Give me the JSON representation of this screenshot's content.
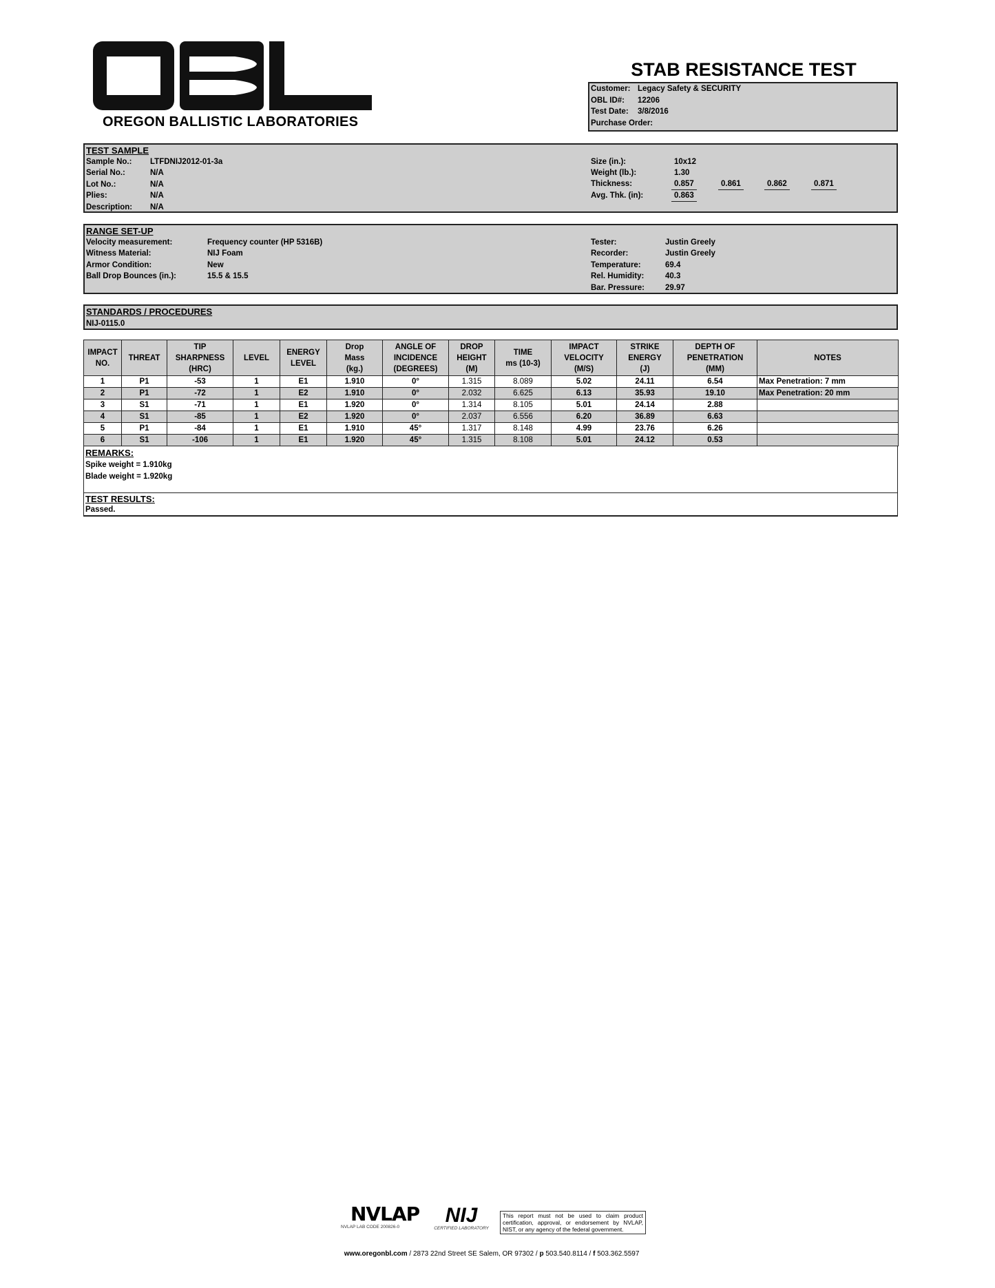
{
  "logo": {
    "letters": "OBL",
    "name": "OREGON BALLISTIC LABORATORIES"
  },
  "title": "STAB RESISTANCE TEST",
  "customer_box": [
    {
      "label": "Customer:",
      "value": "Legacy Safety & SECURITY"
    },
    {
      "label": "OBL ID#:",
      "value": "12206"
    },
    {
      "label": "Test Date:",
      "value": "3/8/2016"
    },
    {
      "label": "Purchase Order:",
      "value": ""
    }
  ],
  "test_sample": {
    "heading": "TEST SAMPLE",
    "left": [
      {
        "label": "Sample No.:",
        "value": "LTFDNIJ2012-01-3a"
      },
      {
        "label": "Serial No.:",
        "value": "N/A"
      },
      {
        "label": "Lot No.:",
        "value": "N/A"
      },
      {
        "label": "Plies:",
        "value": "N/A"
      },
      {
        "label": "Description:",
        "value": "N/A"
      }
    ],
    "size_label": "Size (in.):",
    "size": "10x12",
    "weight_label": "Weight (lb.):",
    "weight": "1.30",
    "thickness_label": "Thickness:",
    "thickness": [
      "0.857",
      "0.861",
      "0.862",
      "0.871"
    ],
    "avg_label": "Avg. Thk. (in):",
    "avg": "0.863"
  },
  "range_setup": {
    "heading": "RANGE SET-UP",
    "left": [
      {
        "label": "Velocity measurement:",
        "value": "Frequency counter (HP 5316B)"
      },
      {
        "label": "Witness Material:",
        "value": "NIJ Foam"
      },
      {
        "label": "Armor Condition:",
        "value": "New"
      },
      {
        "label": "Ball Drop Bounces (in.):",
        "value": "15.5    & 15.5"
      }
    ],
    "right": [
      {
        "label": "Tester:",
        "value": "Justin Greely"
      },
      {
        "label": "Recorder:",
        "value": "Justin Greely"
      },
      {
        "label": "Temperature:",
        "value": "69.4"
      },
      {
        "label": "Rel. Humidity:",
        "value": "40.3"
      },
      {
        "label": "Bar. Pressure:",
        "value": "29.97"
      }
    ]
  },
  "standards": {
    "heading": "STANDARDS / PROCEDURES",
    "value": "NIJ-0115.0"
  },
  "table": {
    "headers": [
      [
        "IMPACT",
        "NO."
      ],
      [
        "THREAT"
      ],
      [
        "TIP",
        "SHARPNESS",
        "(HRC)"
      ],
      [
        "LEVEL"
      ],
      [
        "ENERGY",
        "LEVEL"
      ],
      [
        "Drop",
        "Mass",
        "(kg.)"
      ],
      [
        "ANGLE OF",
        "INCIDENCE",
        "(DEGREES)"
      ],
      [
        "DROP",
        "HEIGHT",
        "(M)"
      ],
      [
        "TIME",
        "ms (10-3)"
      ],
      [
        "IMPACT",
        "VELOCITY",
        "(M/S)"
      ],
      [
        "STRIKE",
        "ENERGY",
        "(J)"
      ],
      [
        "DEPTH OF",
        "PENETRATION",
        "(MM)"
      ],
      [
        "NOTES"
      ]
    ],
    "rows": [
      [
        "1",
        "P1",
        "-53",
        "1",
        "E1",
        "1.910",
        "0°",
        "1.315",
        "8.089",
        "5.02",
        "24.11",
        "6.54",
        "Max Penetration: 7 mm"
      ],
      [
        "2",
        "P1",
        "-72",
        "1",
        "E2",
        "1.910",
        "0°",
        "2.032",
        "6.625",
        "6.13",
        "35.93",
        "19.10",
        "Max Penetration: 20 mm"
      ],
      [
        "3",
        "S1",
        "-71",
        "1",
        "E1",
        "1.920",
        "0°",
        "1.314",
        "8.105",
        "5.01",
        "24.14",
        "2.88",
        ""
      ],
      [
        "4",
        "S1",
        "-85",
        "1",
        "E2",
        "1.920",
        "0°",
        "2.037",
        "6.556",
        "6.20",
        "36.89",
        "6.63",
        ""
      ],
      [
        "5",
        "P1",
        "-84",
        "1",
        "E1",
        "1.910",
        "45°",
        "1.317",
        "8.148",
        "4.99",
        "23.76",
        "6.26",
        ""
      ],
      [
        "6",
        "S1",
        "-106",
        "1",
        "E1",
        "1.920",
        "45°",
        "1.315",
        "8.108",
        "5.01",
        "24.12",
        "0.53",
        ""
      ]
    ]
  },
  "remarks": {
    "heading": "REMARKS:",
    "lines": [
      "Spike weight = 1.910kg",
      "Blade weight = 1.920kg"
    ]
  },
  "results": {
    "heading": "TEST RESULTS:",
    "value": "Passed."
  },
  "footer": {
    "nvlap": "NVLAP",
    "nvlap_code": "NVLAP LAB CODE 200826-0",
    "nij": "NIJ",
    "nij_sub": "CERTIFIED LABORATORY",
    "disclaimer": "This report must not be used to claim product certification, approval, or endorsement by NVLAP, NIST, or any agency of the federal government.",
    "website": "www.oregonbl.com",
    "address": " / 2873 22nd Street SE Salem, OR 97302 / ",
    "p": "p",
    "phone": " 503.540.8114 / ",
    "f": "f",
    "fax": " 503.362.5597"
  }
}
